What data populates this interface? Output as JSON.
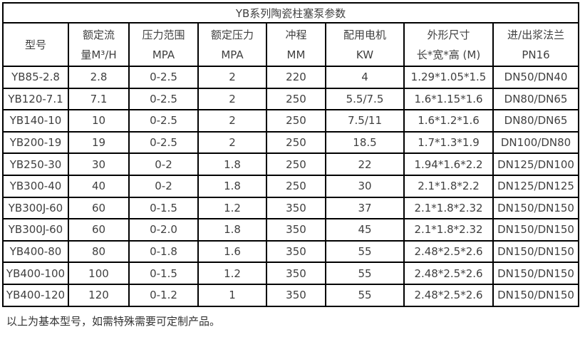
{
  "table": {
    "title": "YB系列陶瓷柱塞泵参数",
    "columns": [
      {
        "line1": "型号",
        "line2": ""
      },
      {
        "line1": "额定流",
        "line2": "量M³/H"
      },
      {
        "line1": "压力范围",
        "line2": "MPA"
      },
      {
        "line1": "额定压力",
        "line2": "MPA"
      },
      {
        "line1": "冲程",
        "line2": "MM"
      },
      {
        "line1": "配用电机",
        "line2": "KW"
      },
      {
        "line1": "外形尺寸",
        "line2": "长*宽*高 (M)"
      },
      {
        "line1": "进/出浆法兰",
        "line2": "PN16"
      }
    ],
    "rows": [
      [
        "YB85-2.8",
        "2.8",
        "0-2.5",
        "2",
        "220",
        "4",
        "1.29*1.05*1.5",
        "DN50/DN40"
      ],
      [
        "YB120-7.1",
        "7.1",
        "0-2.5",
        "2",
        "250",
        "5.5/7.5",
        "1.6*1.15*1.6",
        "DN80/DN65"
      ],
      [
        "YB140-10",
        "10",
        "0-2.5",
        "2",
        "250",
        "7.5/11",
        "1.6*1.2*1.6",
        "DN80/DN65"
      ],
      [
        "YB200-19",
        "19",
        "0-2.5",
        "2",
        "250",
        "18.5",
        "1.7*1.3*1.9",
        "DN100/DN80"
      ],
      [
        "YB250-30",
        "30",
        "0-2",
        "1.8",
        "250",
        "22",
        "1.94*1.6*2.2",
        "DN125/DN100"
      ],
      [
        "YB300-40",
        "40",
        "0-2",
        "1.8",
        "250",
        "30",
        "2.1*1.8*2.2",
        "DN125/DN125"
      ],
      [
        "YB300J-60",
        "60",
        "0-1.5",
        "1.2",
        "350",
        "37",
        "2.1*1.8*2.32",
        "DN150/DN150"
      ],
      [
        "YB300J-60",
        "60",
        "0-2.0",
        "1.8",
        "350",
        "45",
        "2.1*1.8*2.32",
        "DN150/DN150"
      ],
      [
        "YB400-80",
        "80",
        "0-1.8",
        "1.6",
        "350",
        "55",
        "2.48*2.5*2.6",
        "DN150/DN150"
      ],
      [
        "YB400-100",
        "100",
        "0-1.5",
        "1.2",
        "350",
        "55",
        "2.48*2.5*2.6",
        "DN150/DN150"
      ],
      [
        "YB400-120",
        "120",
        "0-1.2",
        "1",
        "350",
        "55",
        "2.48*2.5*2.6",
        "DN150/DN150"
      ]
    ]
  },
  "footer": {
    "note": "以上为基本型号，如需特殊需要可定制产品。"
  },
  "colors": {
    "border": "#000000",
    "text": "#404040",
    "background": "#ffffff"
  }
}
